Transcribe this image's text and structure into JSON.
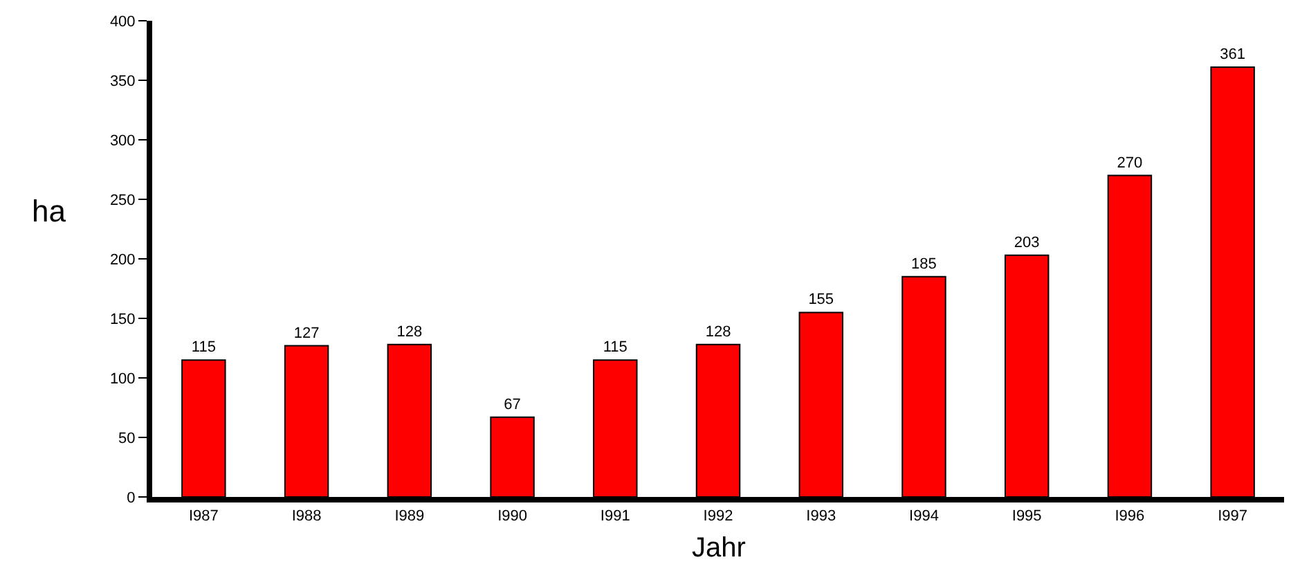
{
  "chart_data": {
    "type": "bar",
    "xlabel": "Jahr",
    "ylabel": "ha",
    "categories": [
      "I987",
      "I988",
      "I989",
      "I990",
      "I991",
      "I992",
      "I993",
      "I994",
      "I995",
      "I996",
      "I997"
    ],
    "values": [
      115,
      127,
      128,
      67,
      115,
      128,
      155,
      185,
      203,
      270,
      361
    ],
    "color": "#ff0000",
    "data_labels": true,
    "legend": false,
    "ylim": [
      0,
      400
    ],
    "yticks": [
      0,
      50,
      100,
      150,
      200,
      250,
      300,
      350,
      400
    ]
  }
}
